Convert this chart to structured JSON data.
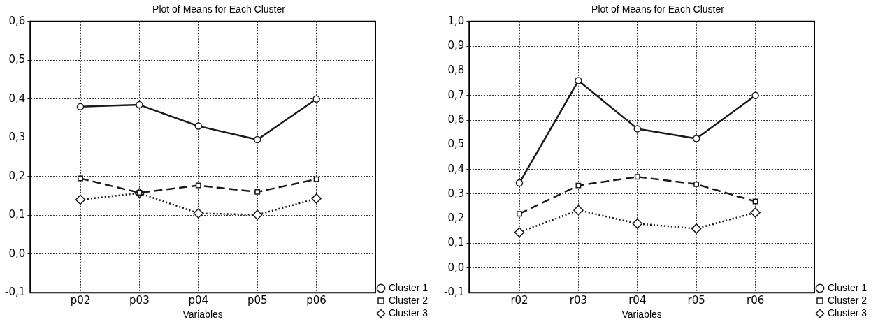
{
  "chart_data": [
    {
      "type": "line",
      "title": "Plot of Means for Each Cluster",
      "xlabel": "Variables",
      "categories": [
        "p02",
        "p03",
        "p04",
        "p05",
        "p06"
      ],
      "series": [
        {
          "name": "Cluster 1",
          "color": "#1a1a1a",
          "marker": "circle",
          "line_style": "solid",
          "values": [
            0.38,
            0.385,
            0.33,
            0.295,
            0.4
          ]
        },
        {
          "name": "Cluster 2",
          "color": "#1a1a1a",
          "marker": "square",
          "line_style": "dashed",
          "values": [
            0.195,
            0.158,
            0.177,
            0.16,
            0.193
          ]
        },
        {
          "name": "Cluster 3",
          "color": "#1a1a1a",
          "marker": "diamond",
          "line_style": "dotted",
          "values": [
            0.14,
            0.157,
            0.105,
            0.101,
            0.143
          ]
        }
      ],
      "ylim": [
        -0.1,
        0.6
      ],
      "yticks": [
        {
          "value": -0.1,
          "label": "-0,1"
        },
        {
          "value": 0,
          "label": "0,0"
        },
        {
          "value": 0.1,
          "label": "0,1"
        },
        {
          "value": 0.2,
          "label": "0,2"
        },
        {
          "value": 0.3,
          "label": "0,3"
        },
        {
          "value": 0.4,
          "label": "0,4"
        },
        {
          "value": 0.5,
          "label": "0,5"
        },
        {
          "value": 0.6,
          "label": "0,6"
        }
      ],
      "grid": true,
      "legend": "bottom right"
    },
    {
      "type": "line",
      "title": "Plot of Means for Each Cluster",
      "xlabel": "Variables",
      "categories": [
        "r02",
        "r03",
        "r04",
        "r05",
        "r06"
      ],
      "series": [
        {
          "name": "Cluster 1",
          "color": "#1a1a1a",
          "marker": "circle",
          "line_style": "solid",
          "values": [
            0.345,
            0.76,
            0.565,
            0.525,
            0.7
          ]
        },
        {
          "name": "Cluster 2",
          "color": "#1a1a1a",
          "marker": "square",
          "line_style": "dashed",
          "values": [
            0.22,
            0.335,
            0.37,
            0.34,
            0.27
          ]
        },
        {
          "name": "Cluster 3",
          "color": "#1a1a1a",
          "marker": "diamond",
          "line_style": "dotted",
          "values": [
            0.145,
            0.235,
            0.18,
            0.16,
            0.225
          ]
        }
      ],
      "ylim": [
        -0.1,
        1.0
      ],
      "yticks": [
        {
          "value": -0.1,
          "label": "-0,1"
        },
        {
          "value": 0,
          "label": "0,0"
        },
        {
          "value": 0.1,
          "label": "0,1"
        },
        {
          "value": 0.2,
          "label": "0,2"
        },
        {
          "value": 0.3,
          "label": "0,3"
        },
        {
          "value": 0.4,
          "label": "0,4"
        },
        {
          "value": 0.5,
          "label": "0,5"
        },
        {
          "value": 0.6,
          "label": "0,6"
        },
        {
          "value": 0.7,
          "label": "0,7"
        },
        {
          "value": 0.8,
          "label": "0,8"
        },
        {
          "value": 0.9,
          "label": "0,9"
        },
        {
          "value": 1.0,
          "label": "1,0"
        }
      ],
      "grid": true,
      "legend": "bottom right"
    }
  ]
}
